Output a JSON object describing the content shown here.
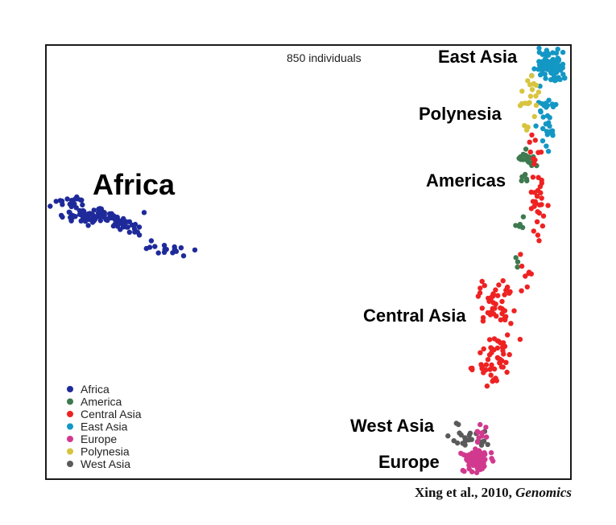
{
  "chart_data": {
    "type": "scatter",
    "subtitle": "850 individuals",
    "series": [
      {
        "name": "Africa",
        "color": "#1f2a9a"
      },
      {
        "name": "America",
        "color": "#3e7a4f"
      },
      {
        "name": "Central Asia",
        "color": "#ee2222"
      },
      {
        "name": "East Asia",
        "color": "#1397c4"
      },
      {
        "name": "Europe",
        "color": "#d1398e"
      },
      {
        "name": "Polynesia",
        "color": "#d8c43e"
      },
      {
        "name": "West Asia",
        "color": "#5a5a5a"
      }
    ],
    "region_labels": [
      "Africa",
      "East Asia",
      "Polynesia",
      "Americas",
      "Central Asia",
      "West Asia",
      "Europe"
    ],
    "legend_position": "bottom-left",
    "grid": false
  },
  "citation": {
    "text": "Xing et al., 2010, ",
    "journal": "Genomics"
  }
}
